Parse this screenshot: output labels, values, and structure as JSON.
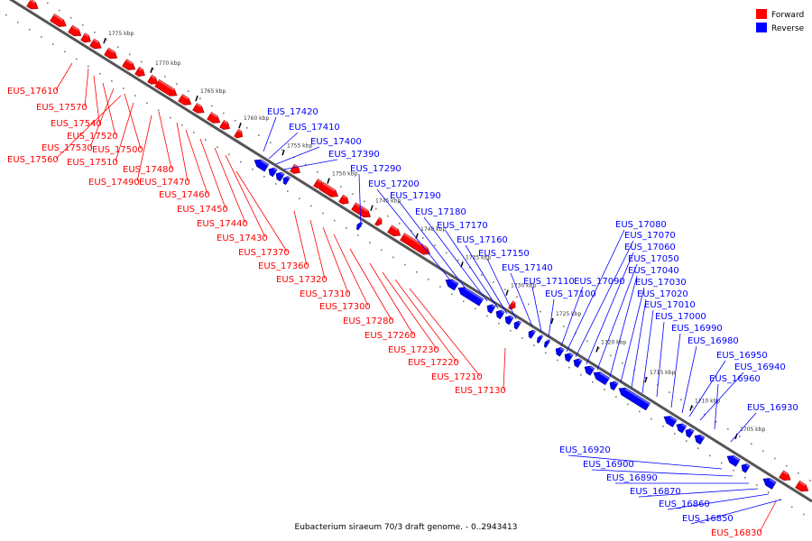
{
  "colors": {
    "forward": "#ff0000",
    "reverse": "#0000ff",
    "backbone": "#555555"
  },
  "legend": [
    {
      "label": "Forward",
      "strand": "forward",
      "color": "#ff0000"
    },
    {
      "label": "Reverse",
      "strand": "reverse",
      "color": "#0000ff"
    }
  ],
  "caption": "Eubacterium siraeum 70/3 draft genome. - 0..2943413",
  "ticks": [
    "1775 kbp",
    "1770 kbp",
    "1765 kbp",
    "1760 kbp",
    "1755 kbp",
    "1750 kbp",
    "1745 kbp",
    "1740 kbp",
    "1735 kbp",
    "1730 kbp",
    "1725 kbp",
    "1720 kbp",
    "1715 kbp",
    "1710 kbp",
    "1705 kbp"
  ],
  "forward_labels": [
    "EUS_17610",
    "EUS_17570",
    "EUS_17540",
    "EUS_17520",
    "EUS_17530",
    "EUS_17500",
    "EUS_17560",
    "EUS_17510",
    "EUS_17480",
    "EUS_17490",
    "EUS_17470",
    "EUS_17460",
    "EUS_17450",
    "EUS_17440",
    "EUS_17430",
    "EUS_17370",
    "EUS_17360",
    "EUS_17320",
    "EUS_17310",
    "EUS_17300",
    "EUS_17280",
    "EUS_17260",
    "EUS_17230",
    "EUS_17220",
    "EUS_17210",
    "EUS_17130",
    "EUS_16830"
  ],
  "reverse_labels": [
    "EUS_17420",
    "EUS_17410",
    "EUS_17400",
    "EUS_17390",
    "EUS_17290",
    "EUS_17200",
    "EUS_17190",
    "EUS_17180",
    "EUS_17170",
    "EUS_17160",
    "EUS_17150",
    "EUS_17140",
    "EUS_17110",
    "EUS_17100",
    "EUS_17090",
    "EUS_17080",
    "EUS_17070",
    "EUS_17060",
    "EUS_17050",
    "EUS_17040",
    "EUS_17030",
    "EUS_17020",
    "EUS_17010",
    "EUS_17000",
    "EUS_16990",
    "EUS_16980",
    "EUS_16950",
    "EUS_16940",
    "EUS_16960",
    "EUS_16930",
    "EUS_16920",
    "EUS_16900",
    "EUS_16890",
    "EUS_16870",
    "EUS_16860",
    "EUS_16850"
  ]
}
